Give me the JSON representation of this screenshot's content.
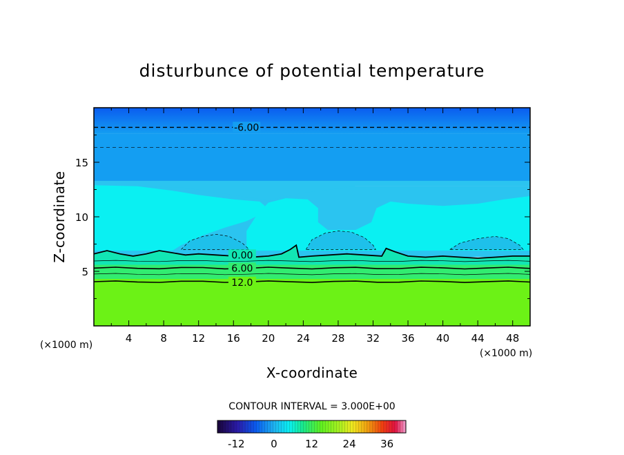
{
  "chart_data": {
    "type": "contour",
    "title": "disturbunce of potential temperature",
    "xlabel": "X-coordinate",
    "ylabel": "Z-coordinate",
    "x_unit_label": "(×1000 m)",
    "xlim": [
      0,
      50
    ],
    "ylim": [
      0,
      20
    ],
    "x_ticks": [
      4,
      8,
      12,
      16,
      20,
      24,
      28,
      32,
      36,
      40,
      44,
      48
    ],
    "y_ticks": [
      5,
      10,
      15
    ],
    "contour_interval_text": "CONTOUR INTERVAL = 3.000E+00",
    "contour_labels": [
      {
        "text": "-6.00",
        "x": 17.5,
        "z": 18.2,
        "level": -6
      },
      {
        "text": "0.00",
        "x": 17.0,
        "z": 6.5,
        "level": 0
      },
      {
        "text": "6.00",
        "x": 17.0,
        "z": 5.3,
        "level": 6
      },
      {
        "text": "12.0",
        "x": 17.0,
        "z": 4.0,
        "level": 12
      }
    ],
    "colorbar": {
      "tick_labels": [
        "-12",
        "0",
        "12",
        "24",
        "36"
      ],
      "tick_values": [
        -12,
        0,
        12,
        24,
        36
      ],
      "range": [
        -18,
        42
      ]
    },
    "colors": {
      "top_layer": "#0a5cf0",
      "upper_band": "#149ef2",
      "mid_background": "#2bc4f0",
      "cyan_plume": "#0af0f2",
      "cold_pocket": "#1ec0ea",
      "transition": "#12e6b4",
      "lower_band": "#32ec70",
      "bottom_layer": "#6cf216"
    }
  }
}
